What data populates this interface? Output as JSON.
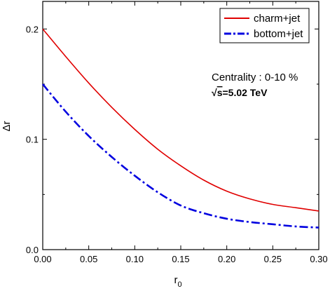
{
  "chart_data": {
    "type": "line",
    "xlabel_main": "r",
    "xlabel_sub": "0",
    "ylabel": "Δr",
    "xlim": [
      0.0,
      0.3
    ],
    "ylim": [
      0.0,
      0.225
    ],
    "x_ticks": [
      "0.00",
      "0.05",
      "0.10",
      "0.15",
      "0.20",
      "0.25",
      "0.30"
    ],
    "x_tick_values": [
      0.0,
      0.05,
      0.1,
      0.15,
      0.2,
      0.25,
      0.3
    ],
    "y_ticks": [
      "0.0",
      "0.1",
      "0.2"
    ],
    "y_tick_values": [
      0.0,
      0.1,
      0.2
    ],
    "legend_position": "top-right",
    "series": [
      {
        "name": "charm+jet",
        "color": "#e00000",
        "style": "solid",
        "x": [
          0.0,
          0.025,
          0.05,
          0.075,
          0.1,
          0.125,
          0.15,
          0.175,
          0.2,
          0.225,
          0.25,
          0.275,
          0.3
        ],
        "y": [
          0.2,
          0.175,
          0.151,
          0.129,
          0.109,
          0.091,
          0.076,
          0.063,
          0.053,
          0.046,
          0.041,
          0.038,
          0.035
        ]
      },
      {
        "name": "bottom+jet",
        "color": "#0000e0",
        "style": "dashdot",
        "x": [
          0.0,
          0.025,
          0.05,
          0.075,
          0.1,
          0.125,
          0.15,
          0.175,
          0.2,
          0.225,
          0.25,
          0.275,
          0.3
        ],
        "y": [
          0.15,
          0.125,
          0.103,
          0.084,
          0.067,
          0.052,
          0.04,
          0.033,
          0.028,
          0.025,
          0.023,
          0.021,
          0.02
        ]
      }
    ],
    "annotation": {
      "line1": "Centrality : 0-10 %",
      "line2_sqrt": "√",
      "line2_s": "s",
      "line2_rest": "=5.02 TeV"
    }
  }
}
